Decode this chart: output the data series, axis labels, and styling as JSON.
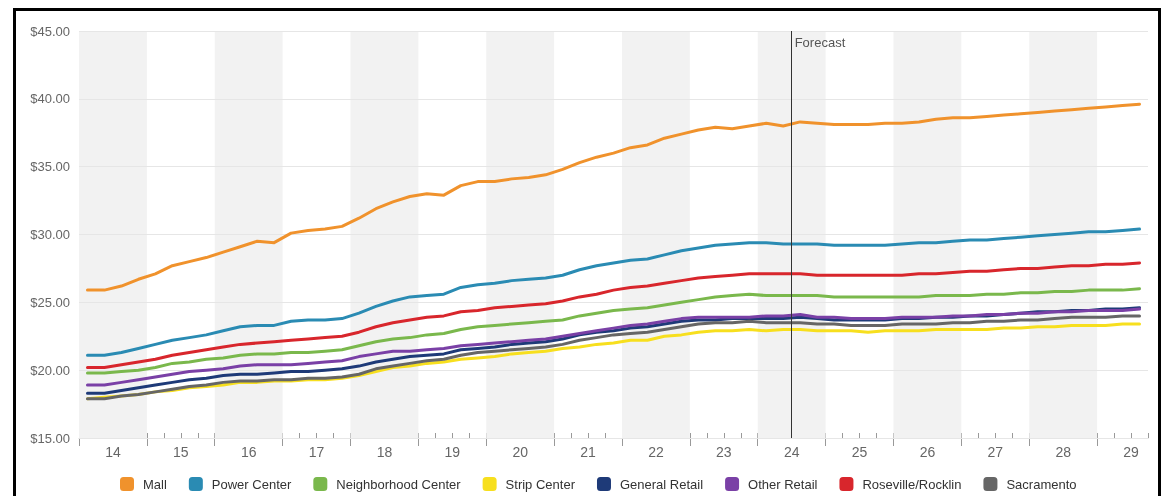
{
  "chart_data": {
    "type": "line",
    "x": [
      13.625,
      13.875,
      14.125,
      14.375,
      14.625,
      14.875,
      15.125,
      15.375,
      15.625,
      15.875,
      16.125,
      16.375,
      16.625,
      16.875,
      17.125,
      17.375,
      17.625,
      17.875,
      18.125,
      18.375,
      18.625,
      18.875,
      19.125,
      19.375,
      19.625,
      19.875,
      20.125,
      20.375,
      20.625,
      20.875,
      21.125,
      21.375,
      21.625,
      21.875,
      22.125,
      22.375,
      22.625,
      22.875,
      23.125,
      23.375,
      23.625,
      23.875,
      24.125,
      24.375,
      24.625,
      24.875,
      25.125,
      25.375,
      25.625,
      25.875,
      26.125,
      26.375,
      26.625,
      26.875,
      27.125,
      27.375,
      27.625,
      27.875,
      28.125,
      28.375,
      28.625,
      28.875,
      29.125
    ],
    "series": [
      {
        "name": "Mall",
        "color": "#f0922c",
        "values": [
          25.9,
          25.9,
          26.2,
          26.7,
          27.1,
          27.7,
          28.0,
          28.3,
          28.7,
          29.1,
          29.5,
          29.4,
          30.1,
          30.3,
          30.4,
          30.6,
          31.2,
          31.9,
          32.4,
          32.8,
          33.0,
          32.9,
          33.6,
          33.9,
          33.9,
          34.1,
          34.2,
          34.4,
          34.8,
          35.3,
          35.7,
          36.0,
          36.4,
          36.6,
          37.1,
          37.4,
          37.7,
          37.9,
          37.8,
          38.0,
          38.2,
          38.0,
          38.3,
          38.2,
          38.1,
          38.1,
          38.1,
          38.2,
          38.2,
          38.3,
          38.5,
          38.6,
          38.6,
          38.7,
          38.8,
          38.9,
          39.0,
          39.1,
          39.2,
          39.3,
          39.4,
          39.5,
          39.6
        ]
      },
      {
        "name": "Power Center",
        "color": "#2a8bb3",
        "values": [
          21.1,
          21.1,
          21.3,
          21.6,
          21.9,
          22.2,
          22.4,
          22.6,
          22.9,
          23.2,
          23.3,
          23.3,
          23.6,
          23.7,
          23.7,
          23.8,
          24.2,
          24.7,
          25.1,
          25.4,
          25.5,
          25.6,
          26.1,
          26.3,
          26.4,
          26.6,
          26.7,
          26.8,
          27.0,
          27.4,
          27.7,
          27.9,
          28.1,
          28.2,
          28.5,
          28.8,
          29.0,
          29.2,
          29.3,
          29.4,
          29.4,
          29.3,
          29.3,
          29.3,
          29.2,
          29.2,
          29.2,
          29.2,
          29.3,
          29.4,
          29.4,
          29.5,
          29.6,
          29.6,
          29.7,
          29.8,
          29.9,
          30.0,
          30.1,
          30.2,
          30.2,
          30.3,
          30.4
        ]
      },
      {
        "name": "Neighborhood Center",
        "color": "#7ab84c",
        "values": [
          19.8,
          19.8,
          19.9,
          20.0,
          20.2,
          20.5,
          20.6,
          20.8,
          20.9,
          21.1,
          21.2,
          21.2,
          21.3,
          21.3,
          21.4,
          21.5,
          21.8,
          22.1,
          22.3,
          22.4,
          22.6,
          22.7,
          23.0,
          23.2,
          23.3,
          23.4,
          23.5,
          23.6,
          23.7,
          24.0,
          24.2,
          24.4,
          24.5,
          24.6,
          24.8,
          25.0,
          25.2,
          25.4,
          25.5,
          25.6,
          25.5,
          25.5,
          25.5,
          25.5,
          25.4,
          25.4,
          25.4,
          25.4,
          25.4,
          25.4,
          25.5,
          25.5,
          25.5,
          25.6,
          25.6,
          25.7,
          25.7,
          25.8,
          25.8,
          25.9,
          25.9,
          25.9,
          26.0
        ]
      },
      {
        "name": "Strip Center",
        "color": "#f7df1e",
        "values": [
          17.9,
          18.0,
          18.1,
          18.2,
          18.4,
          18.5,
          18.7,
          18.8,
          18.9,
          19.1,
          19.1,
          19.2,
          19.2,
          19.3,
          19.3,
          19.4,
          19.6,
          19.9,
          20.2,
          20.3,
          20.5,
          20.6,
          20.8,
          20.9,
          21.0,
          21.2,
          21.3,
          21.4,
          21.6,
          21.7,
          21.9,
          22.0,
          22.2,
          22.2,
          22.5,
          22.6,
          22.8,
          22.9,
          22.9,
          23.0,
          22.9,
          23.0,
          23.0,
          22.9,
          22.9,
          22.9,
          22.8,
          22.9,
          22.9,
          22.9,
          23.0,
          23.0,
          23.0,
          23.0,
          23.1,
          23.1,
          23.2,
          23.2,
          23.3,
          23.3,
          23.3,
          23.4,
          23.4
        ]
      },
      {
        "name": "General Retail",
        "color": "#1e3a78",
        "values": [
          18.3,
          18.3,
          18.5,
          18.7,
          18.9,
          19.1,
          19.3,
          19.4,
          19.6,
          19.7,
          19.7,
          19.8,
          19.9,
          19.9,
          20.0,
          20.1,
          20.3,
          20.6,
          20.8,
          21.0,
          21.1,
          21.2,
          21.5,
          21.6,
          21.7,
          21.9,
          22.0,
          22.1,
          22.3,
          22.6,
          22.8,
          22.9,
          23.1,
          23.2,
          23.4,
          23.6,
          23.7,
          23.7,
          23.8,
          23.8,
          23.8,
          23.8,
          23.9,
          23.8,
          23.7,
          23.7,
          23.7,
          23.7,
          23.8,
          23.8,
          23.9,
          23.9,
          24.0,
          24.0,
          24.1,
          24.2,
          24.3,
          24.3,
          24.4,
          24.4,
          24.5,
          24.5,
          24.6
        ]
      },
      {
        "name": "Other Retail",
        "color": "#7a40a6",
        "values": [
          18.9,
          18.9,
          19.1,
          19.3,
          19.5,
          19.7,
          19.9,
          20.0,
          20.1,
          20.3,
          20.4,
          20.4,
          20.4,
          20.5,
          20.6,
          20.7,
          21.0,
          21.2,
          21.4,
          21.4,
          21.5,
          21.6,
          21.8,
          21.9,
          22.0,
          22.1,
          22.2,
          22.3,
          22.5,
          22.7,
          22.9,
          23.1,
          23.3,
          23.4,
          23.6,
          23.8,
          23.9,
          23.9,
          23.9,
          23.9,
          24.0,
          24.0,
          24.1,
          23.9,
          23.9,
          23.8,
          23.8,
          23.8,
          23.9,
          23.9,
          23.9,
          24.0,
          24.0,
          24.1,
          24.1,
          24.2,
          24.2,
          24.3,
          24.3,
          24.4,
          24.4,
          24.4,
          24.5
        ]
      },
      {
        "name": "Roseville/Rocklin",
        "color": "#d8262c",
        "values": [
          20.2,
          20.2,
          20.4,
          20.6,
          20.8,
          21.1,
          21.3,
          21.5,
          21.7,
          21.9,
          22.0,
          22.1,
          22.2,
          22.3,
          22.4,
          22.5,
          22.8,
          23.2,
          23.5,
          23.7,
          23.9,
          24.0,
          24.3,
          24.4,
          24.6,
          24.7,
          24.8,
          24.9,
          25.1,
          25.4,
          25.6,
          25.9,
          26.1,
          26.2,
          26.4,
          26.6,
          26.8,
          26.9,
          27.0,
          27.1,
          27.1,
          27.1,
          27.1,
          27.0,
          27.0,
          27.0,
          27.0,
          27.0,
          27.0,
          27.1,
          27.1,
          27.2,
          27.3,
          27.3,
          27.4,
          27.5,
          27.5,
          27.6,
          27.7,
          27.7,
          27.8,
          27.8,
          27.9
        ]
      },
      {
        "name": "Sacramento",
        "color": "#666666",
        "values": [
          17.9,
          17.9,
          18.1,
          18.2,
          18.4,
          18.6,
          18.8,
          18.9,
          19.1,
          19.2,
          19.2,
          19.3,
          19.3,
          19.4,
          19.4,
          19.5,
          19.7,
          20.1,
          20.3,
          20.5,
          20.7,
          20.8,
          21.1,
          21.3,
          21.4,
          21.5,
          21.6,
          21.7,
          21.9,
          22.2,
          22.4,
          22.6,
          22.7,
          22.8,
          23.0,
          23.2,
          23.4,
          23.5,
          23.5,
          23.6,
          23.5,
          23.5,
          23.5,
          23.4,
          23.4,
          23.3,
          23.3,
          23.3,
          23.4,
          23.4,
          23.4,
          23.5,
          23.5,
          23.6,
          23.6,
          23.7,
          23.7,
          23.8,
          23.9,
          23.9,
          23.9,
          24.0,
          24.0
        ]
      }
    ],
    "xlim": [
      13.5,
      29.25
    ],
    "xticks": [
      {
        "value": 13.5,
        "label": null
      },
      {
        "value": 13.75,
        "label": null
      },
      14,
      {
        "value": 14.25,
        "label": null
      },
      {
        "value": 14.5,
        "label": null
      },
      {
        "value": 14.75,
        "label": null
      },
      15,
      {
        "value": 15.25,
        "label": null
      },
      {
        "value": 15.5,
        "label": null
      },
      {
        "value": 15.75,
        "label": null
      },
      16,
      {
        "value": 16.25,
        "label": null
      },
      {
        "value": 16.5,
        "label": null
      },
      {
        "value": 16.75,
        "label": null
      },
      17,
      {
        "value": 17.25,
        "label": null
      },
      {
        "value": 17.5,
        "label": null
      },
      {
        "value": 17.75,
        "label": null
      },
      18,
      {
        "value": 18.25,
        "label": null
      },
      {
        "value": 18.5,
        "label": null
      },
      {
        "value": 18.75,
        "label": null
      },
      19,
      {
        "value": 19.25,
        "label": null
      },
      {
        "value": 19.5,
        "label": null
      },
      {
        "value": 19.75,
        "label": null
      },
      20,
      {
        "value": 20.25,
        "label": null
      },
      {
        "value": 20.5,
        "label": null
      },
      {
        "value": 20.75,
        "label": null
      },
      21,
      {
        "value": 21.25,
        "label": null
      },
      {
        "value": 21.5,
        "label": null
      },
      {
        "value": 21.75,
        "label": null
      },
      22,
      {
        "value": 22.25,
        "label": null
      },
      {
        "value": 22.5,
        "label": null
      },
      {
        "value": 22.75,
        "label": null
      },
      23,
      {
        "value": 23.25,
        "label": null
      },
      {
        "value": 23.5,
        "label": null
      },
      {
        "value": 23.75,
        "label": null
      },
      24,
      {
        "value": 24.25,
        "label": null
      },
      {
        "value": 24.5,
        "label": null
      },
      {
        "value": 24.75,
        "label": null
      },
      25,
      {
        "value": 25.25,
        "label": null
      },
      {
        "value": 25.5,
        "label": null
      },
      {
        "value": 25.75,
        "label": null
      },
      26,
      {
        "value": 26.25,
        "label": null
      },
      {
        "value": 26.5,
        "label": null
      },
      {
        "value": 26.75,
        "label": null
      },
      27,
      {
        "value": 27.25,
        "label": null
      },
      {
        "value": 27.5,
        "label": null
      },
      {
        "value": 27.75,
        "label": null
      },
      28,
      {
        "value": 28.25,
        "label": null
      },
      {
        "value": 28.5,
        "label": null
      },
      {
        "value": 28.75,
        "label": null
      },
      29,
      {
        "value": 29.25,
        "label": null
      }
    ],
    "ylim": [
      15,
      45
    ],
    "yticks": [
      {
        "value": 15,
        "label": "$15.00"
      },
      {
        "value": 20,
        "label": "$20.00"
      },
      {
        "value": 25,
        "label": "$25.00"
      },
      {
        "value": 30,
        "label": "$30.00"
      },
      {
        "value": 35,
        "label": "$35.00"
      },
      {
        "value": 40,
        "label": "$40.00"
      },
      {
        "value": 45,
        "label": "$45.00"
      }
    ],
    "bands": [
      {
        "axis": "x",
        "from": 13.5,
        "to": 14.5,
        "color": "#f2f2f2"
      },
      {
        "axis": "x",
        "from": 15.5,
        "to": 16.5,
        "color": "#f2f2f2"
      },
      {
        "axis": "x",
        "from": 17.5,
        "to": 18.5,
        "color": "#f2f2f2"
      },
      {
        "axis": "x",
        "from": 19.5,
        "to": 20.5,
        "color": "#f2f2f2"
      },
      {
        "axis": "x",
        "from": 21.5,
        "to": 22.5,
        "color": "#f2f2f2"
      },
      {
        "axis": "x",
        "from": 23.5,
        "to": 24.5,
        "color": "#f2f2f2"
      },
      {
        "axis": "x",
        "from": 25.5,
        "to": 26.5,
        "color": "#f2f2f2"
      },
      {
        "axis": "x",
        "from": 27.5,
        "to": 28.5,
        "color": "#f2f2f2"
      }
    ],
    "ref_lines": [
      {
        "axis": "x",
        "value": 24,
        "label": "Forecast",
        "color": "#333333"
      }
    ],
    "grid": "y",
    "legend": "bottom",
    "marker": "none"
  }
}
